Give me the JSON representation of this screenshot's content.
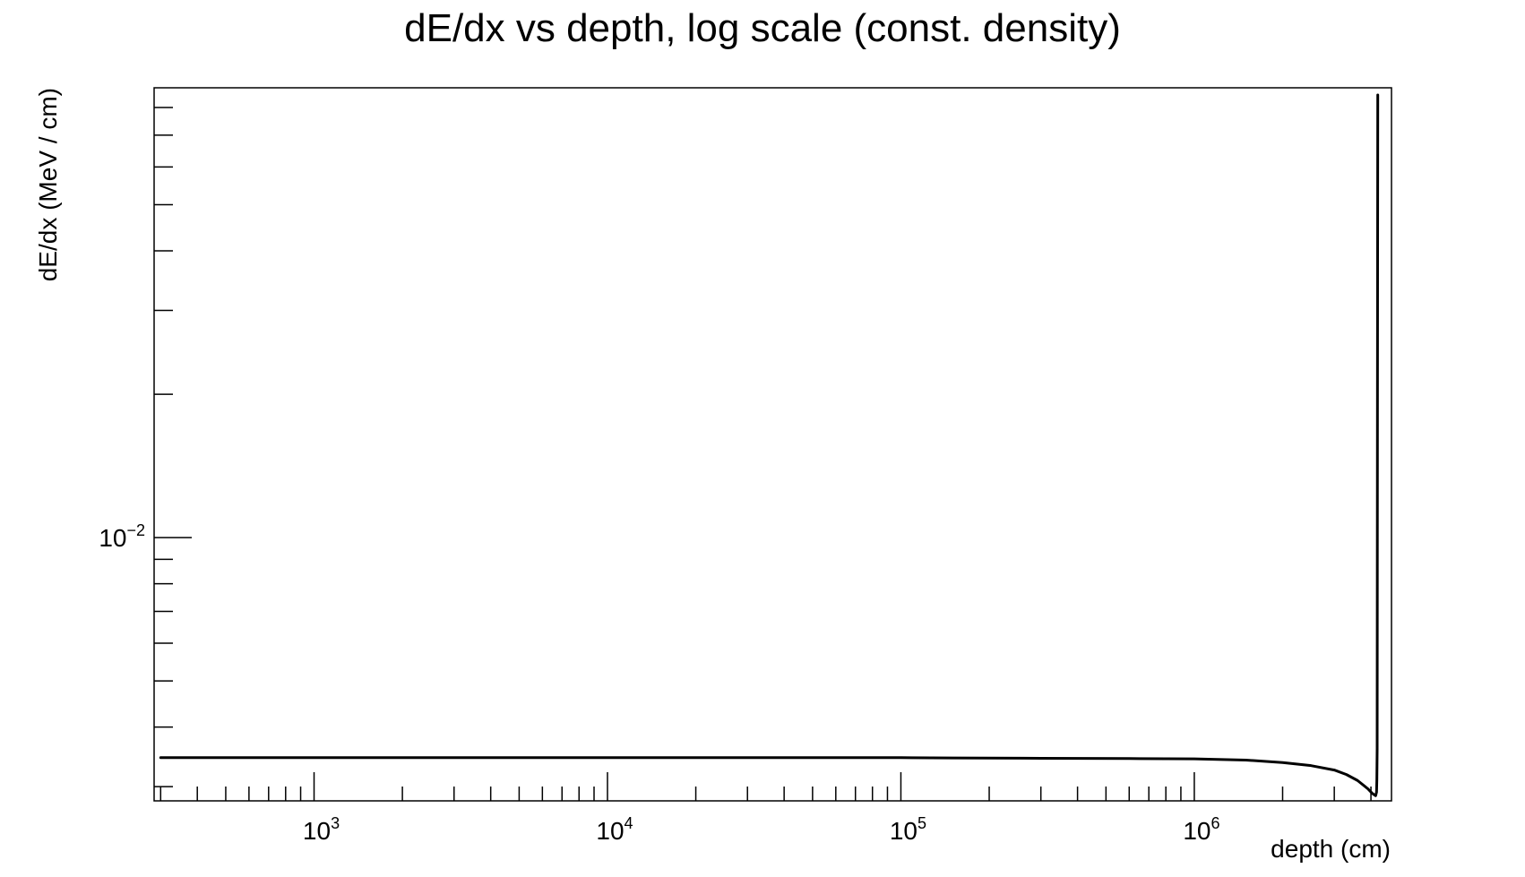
{
  "chart_data": {
    "type": "line",
    "title": "dE/dx vs depth, log scale (const. density)",
    "xlabel": "depth (cm)",
    "ylabel": "dE/dx (MeV / cm)",
    "xscale": "log",
    "yscale": "log",
    "xlim": [
      285,
      4700000
    ],
    "ylim": [
      0.0028,
      0.088
    ],
    "grid": false,
    "legend": "none",
    "x_tick_labels": [
      {
        "value": 1000,
        "base": "10",
        "exp": "3"
      },
      {
        "value": 10000,
        "base": "10",
        "exp": "4"
      },
      {
        "value": 100000,
        "base": "10",
        "exp": "5"
      },
      {
        "value": 1000000,
        "base": "10",
        "exp": "6"
      }
    ],
    "y_tick_labels": [
      {
        "value": 0.01,
        "base": "10",
        "exp": "−2"
      }
    ],
    "series": [
      {
        "color": "#000000",
        "x": [
          300,
          1000,
          10000,
          100000,
          150000,
          300000,
          600000,
          1000000,
          1500000,
          2000000,
          2500000,
          3000000,
          3300000,
          3600000,
          3900000,
          4050000,
          4150000,
          4180000,
          4190000,
          4200000,
          4210000,
          4220000
        ],
        "y": [
          0.00345,
          0.00345,
          0.00345,
          0.00345,
          0.003445,
          0.00344,
          0.003435,
          0.00343,
          0.00341,
          0.00337,
          0.00332,
          0.00325,
          0.00318,
          0.00309,
          0.00297,
          0.0029,
          0.00287,
          0.00292,
          0.0031,
          0.0036,
          0.02,
          0.085
        ]
      }
    ]
  }
}
